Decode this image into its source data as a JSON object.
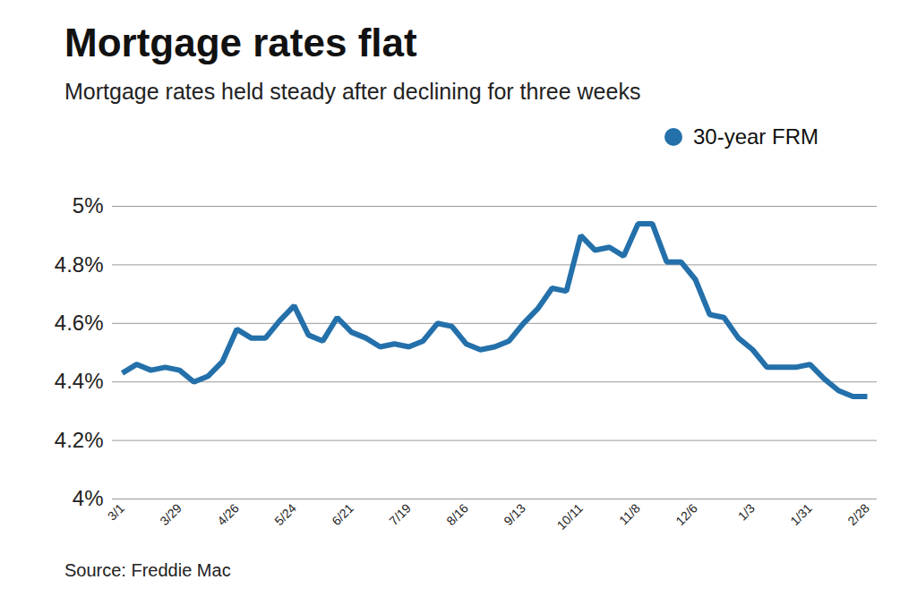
{
  "chart_data": {
    "type": "line",
    "title": "Mortgage rates flat",
    "subtitle": "Mortgage rates held steady after declining for three weeks",
    "caption": "Source: Freddie Mac",
    "categories": [
      "3/1",
      null,
      null,
      null,
      "3/29",
      null,
      null,
      null,
      "4/26",
      null,
      null,
      null,
      "5/24",
      null,
      null,
      null,
      "6/21",
      null,
      null,
      null,
      "7/19",
      null,
      null,
      null,
      "8/16",
      null,
      null,
      null,
      "9/13",
      null,
      null,
      null,
      "10/11",
      null,
      null,
      null,
      "11/8",
      null,
      null,
      null,
      "12/6",
      null,
      null,
      null,
      "1/3",
      null,
      null,
      null,
      "1/31",
      null,
      null,
      null,
      "2/28"
    ],
    "series": [
      {
        "name": "30-year FRM",
        "color": "#2470aa",
        "values": [
          4.43,
          4.46,
          4.44,
          4.45,
          4.44,
          4.4,
          4.42,
          4.47,
          4.58,
          4.55,
          4.55,
          4.61,
          4.66,
          4.56,
          4.54,
          4.62,
          4.57,
          4.55,
          4.52,
          4.53,
          4.52,
          4.54,
          4.6,
          4.59,
          4.53,
          4.51,
          4.52,
          4.54,
          4.6,
          4.65,
          4.72,
          4.71,
          4.9,
          4.85,
          4.86,
          4.83,
          4.94,
          4.94,
          4.81,
          4.81,
          4.75,
          4.63,
          4.62,
          4.55,
          4.51,
          4.45,
          4.45,
          4.45,
          4.46,
          4.41,
          4.37,
          4.35,
          4.35
        ]
      }
    ],
    "ylim": [
      4,
      5
    ],
    "yticks": [
      {
        "value": 4,
        "label": "4%"
      },
      {
        "value": 4.2,
        "label": "4.2%"
      },
      {
        "value": 4.4,
        "label": "4.4%"
      },
      {
        "value": 4.6,
        "label": "4.6%"
      },
      {
        "value": 4.8,
        "label": "4.8%"
      },
      {
        "value": 5,
        "label": "5%"
      }
    ],
    "grid": true,
    "legend": "top-right"
  }
}
